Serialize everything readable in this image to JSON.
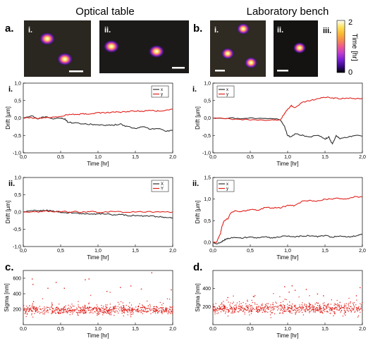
{
  "columns": [
    {
      "title": "Optical table",
      "panel": "a.",
      "images": [
        "i.",
        "ii."
      ]
    },
    {
      "title": "Laboratory bench",
      "panel": "b.",
      "images": [
        "i.",
        "ii.",
        "iii."
      ]
    }
  ],
  "colorbar": {
    "label": "Time [hr]",
    "max": "2",
    "min": "0",
    "colors": [
      "#000000",
      "#3c0a8c",
      "#7a1fd6",
      "#c33cd0",
      "#ee5a8c",
      "#f88c4a",
      "#fbb935",
      "#fde35e",
      "#ffffff"
    ]
  },
  "colors": {
    "x_line": "#303030",
    "y_line": "#e0201a",
    "sigma": "#e0201a"
  },
  "chart_data": [
    {
      "id": "a-i",
      "type": "line",
      "panel_label": "i.",
      "xlabel": "Time [hr]",
      "ylabel": "Drift [µm]",
      "xlim": [
        0,
        2
      ],
      "ylim": [
        -1.0,
        1.0
      ],
      "xticks": [
        "0,0",
        "0,5",
        "1,0",
        "1,5",
        "2,0"
      ],
      "yticks": [
        "-1,0",
        "-0,5",
        "0,0",
        "0,5",
        "1,0"
      ],
      "legend": [
        "x",
        "y"
      ],
      "legend_placement": "top-right",
      "series": [
        {
          "name": "x",
          "points": [
            [
              0,
              0
            ],
            [
              0.1,
              0.07
            ],
            [
              0.2,
              -0.03
            ],
            [
              0.3,
              0.05
            ],
            [
              0.4,
              -0.03
            ],
            [
              0.5,
              0.0
            ],
            [
              0.55,
              -0.02
            ],
            [
              0.6,
              -0.12
            ],
            [
              0.7,
              -0.15
            ],
            [
              0.8,
              -0.17
            ],
            [
              0.9,
              -0.18
            ],
            [
              1.0,
              -0.2
            ],
            [
              1.1,
              -0.22
            ],
            [
              1.2,
              -0.2
            ],
            [
              1.3,
              -0.18
            ],
            [
              1.4,
              -0.25
            ],
            [
              1.5,
              -0.3
            ],
            [
              1.6,
              -0.25
            ],
            [
              1.7,
              -0.32
            ],
            [
              1.8,
              -0.3
            ],
            [
              1.9,
              -0.37
            ],
            [
              2.0,
              -0.35
            ]
          ]
        },
        {
          "name": "y",
          "points": [
            [
              0,
              0
            ],
            [
              0.1,
              0.0
            ],
            [
              0.2,
              -0.02
            ],
            [
              0.3,
              0.02
            ],
            [
              0.4,
              0.02
            ],
            [
              0.5,
              0.05
            ],
            [
              0.6,
              0.1
            ],
            [
              0.7,
              0.1
            ],
            [
              0.8,
              0.12
            ],
            [
              0.9,
              0.12
            ],
            [
              1.0,
              0.15
            ],
            [
              1.1,
              0.15
            ],
            [
              1.2,
              0.17
            ],
            [
              1.3,
              0.17
            ],
            [
              1.4,
              0.18
            ],
            [
              1.5,
              0.2
            ],
            [
              1.6,
              0.2
            ],
            [
              1.7,
              0.22
            ],
            [
              1.8,
              0.2
            ],
            [
              1.9,
              0.22
            ],
            [
              2.0,
              0.25
            ]
          ]
        }
      ]
    },
    {
      "id": "a-ii",
      "type": "line",
      "panel_label": "ii.",
      "xlabel": "Time [hr]",
      "ylabel": "Drift [µm]",
      "xlim": [
        0,
        2
      ],
      "ylim": [
        -1.0,
        1.0
      ],
      "xticks": [
        "0,0",
        "0,5",
        "1,0",
        "1,5",
        "2,0"
      ],
      "yticks": [
        "-1,0",
        "-0,5",
        "0,0",
        "0,5",
        "1,0"
      ],
      "legend": [
        "X",
        "Y"
      ],
      "legend_placement": "top-right",
      "series": [
        {
          "name": "X",
          "points": [
            [
              0,
              0
            ],
            [
              0.1,
              0.03
            ],
            [
              0.2,
              0.05
            ],
            [
              0.3,
              0.05
            ],
            [
              0.4,
              0.02
            ],
            [
              0.5,
              0.0
            ],
            [
              0.6,
              -0.02
            ],
            [
              0.7,
              -0.03
            ],
            [
              0.8,
              -0.05
            ],
            [
              0.9,
              -0.07
            ],
            [
              1.0,
              -0.05
            ],
            [
              1.1,
              -0.05
            ],
            [
              1.2,
              -0.08
            ],
            [
              1.3,
              -0.07
            ],
            [
              1.4,
              -0.1
            ],
            [
              1.5,
              -0.1
            ],
            [
              1.6,
              -0.12
            ],
            [
              1.7,
              -0.12
            ],
            [
              1.8,
              -0.13
            ],
            [
              1.9,
              -0.15
            ],
            [
              2.0,
              -0.17
            ]
          ]
        },
        {
          "name": "Y",
          "points": [
            [
              0,
              0
            ],
            [
              0.1,
              0.0
            ],
            [
              0.2,
              0.01
            ],
            [
              0.3,
              0.02
            ],
            [
              0.4,
              0.01
            ],
            [
              0.5,
              0.02
            ],
            [
              0.6,
              0.0
            ],
            [
              0.7,
              0.01
            ],
            [
              0.8,
              0.0
            ],
            [
              0.9,
              0.01
            ],
            [
              1.0,
              0.0
            ],
            [
              1.2,
              0.01
            ],
            [
              1.4,
              0.0
            ],
            [
              1.6,
              0.01
            ],
            [
              1.8,
              0.0
            ],
            [
              2.0,
              0.0
            ]
          ]
        }
      ]
    },
    {
      "id": "b-i",
      "type": "line",
      "panel_label": "i.",
      "xlabel": "Time [hr]",
      "ylabel": "Drift [µm]",
      "xlim": [
        0,
        2
      ],
      "ylim": [
        -1.0,
        1.0
      ],
      "xticks": [
        "0,0",
        "0,5",
        "1,0",
        "1,5",
        "2,0"
      ],
      "yticks": [
        "-1,0",
        "-0,5",
        "0,0",
        "0,5",
        "1,0"
      ],
      "legend": [
        "x",
        "y"
      ],
      "legend_placement": "top-left",
      "series": [
        {
          "name": "x",
          "points": [
            [
              0,
              0
            ],
            [
              0.2,
              0.0
            ],
            [
              0.4,
              -0.02
            ],
            [
              0.6,
              0.0
            ],
            [
              0.8,
              -0.02
            ],
            [
              0.9,
              -0.05
            ],
            [
              0.95,
              -0.2
            ],
            [
              1.0,
              -0.5
            ],
            [
              1.05,
              -0.55
            ],
            [
              1.1,
              -0.45
            ],
            [
              1.2,
              -0.5
            ],
            [
              1.3,
              -0.55
            ],
            [
              1.4,
              -0.5
            ],
            [
              1.5,
              -0.6
            ],
            [
              1.55,
              -0.55
            ],
            [
              1.6,
              -0.75
            ],
            [
              1.65,
              -0.5
            ],
            [
              1.7,
              -0.6
            ],
            [
              1.8,
              -0.55
            ],
            [
              1.9,
              -0.5
            ],
            [
              2.0,
              -0.52
            ]
          ]
        },
        {
          "name": "y",
          "points": [
            [
              0,
              0
            ],
            [
              0.2,
              -0.03
            ],
            [
              0.4,
              -0.05
            ],
            [
              0.6,
              -0.05
            ],
            [
              0.8,
              -0.06
            ],
            [
              0.9,
              -0.05
            ],
            [
              0.95,
              0.1
            ],
            [
              1.0,
              0.25
            ],
            [
              1.05,
              0.35
            ],
            [
              1.1,
              0.3
            ],
            [
              1.2,
              0.45
            ],
            [
              1.3,
              0.5
            ],
            [
              1.4,
              0.55
            ],
            [
              1.5,
              0.6
            ],
            [
              1.6,
              0.57
            ],
            [
              1.7,
              0.55
            ],
            [
              1.8,
              0.58
            ],
            [
              1.9,
              0.55
            ],
            [
              2.0,
              0.57
            ]
          ]
        }
      ]
    },
    {
      "id": "b-ii",
      "type": "line",
      "panel_label": "ii.",
      "xlabel": "Time [hr]",
      "ylabel": "Drift [µm]",
      "xlim": [
        0,
        2
      ],
      "ylim": [
        -0.1,
        1.5
      ],
      "xticks": [
        "0,0",
        "0,5",
        "1,0",
        "1,5",
        "2,0"
      ],
      "yticks": [
        "0,0",
        "0,5",
        "1,0",
        "1,5"
      ],
      "legend": [
        "x",
        "y"
      ],
      "legend_placement": "top-left",
      "series": [
        {
          "name": "x",
          "points": [
            [
              0,
              0
            ],
            [
              0.05,
              -0.05
            ],
            [
              0.1,
              0.0
            ],
            [
              0.15,
              0.05
            ],
            [
              0.2,
              0.08
            ],
            [
              0.3,
              0.12
            ],
            [
              0.4,
              0.1
            ],
            [
              0.5,
              0.12
            ],
            [
              0.6,
              0.1
            ],
            [
              0.7,
              0.12
            ],
            [
              0.8,
              0.1
            ],
            [
              0.9,
              0.13
            ],
            [
              1.0,
              0.15
            ],
            [
              1.1,
              0.12
            ],
            [
              1.2,
              0.15
            ],
            [
              1.3,
              0.15
            ],
            [
              1.4,
              0.13
            ],
            [
              1.5,
              0.15
            ],
            [
              1.6,
              0.12
            ],
            [
              1.7,
              0.15
            ],
            [
              1.8,
              0.12
            ],
            [
              1.9,
              0.15
            ],
            [
              2.0,
              0.18
            ]
          ]
        },
        {
          "name": "y",
          "points": [
            [
              0,
              0
            ],
            [
              0.05,
              0.0
            ],
            [
              0.1,
              0.2
            ],
            [
              0.12,
              0.35
            ],
            [
              0.15,
              0.5
            ],
            [
              0.2,
              0.55
            ],
            [
              0.25,
              0.7
            ],
            [
              0.3,
              0.72
            ],
            [
              0.4,
              0.72
            ],
            [
              0.5,
              0.75
            ],
            [
              0.6,
              0.75
            ],
            [
              0.7,
              0.8
            ],
            [
              0.8,
              0.8
            ],
            [
              0.9,
              0.8
            ],
            [
              1.0,
              0.85
            ],
            [
              1.1,
              0.85
            ],
            [
              1.2,
              0.95
            ],
            [
              1.3,
              0.97
            ],
            [
              1.4,
              0.95
            ],
            [
              1.5,
              1.0
            ],
            [
              1.6,
              1.0
            ],
            [
              1.7,
              1.02
            ],
            [
              1.8,
              1.0
            ],
            [
              1.9,
              1.05
            ],
            [
              2.0,
              1.05
            ]
          ]
        }
      ]
    },
    {
      "id": "c",
      "type": "scatter",
      "panel_label": "c.",
      "xlabel": "Time [hr]",
      "ylabel": "Sigma [nm]",
      "xlim": [
        0,
        2
      ],
      "ylim": [
        0,
        700
      ],
      "xticks": [
        "0,0",
        "0,5",
        "1,0",
        "1,5",
        "2,0"
      ],
      "yticks": [
        "200",
        "400",
        "600"
      ],
      "summary": {
        "n_points": 700,
        "median": 190,
        "spread": 30,
        "outliers_up_to": 670
      },
      "outliers": [
        [
          0.12,
          590
        ],
        [
          0.13,
          520
        ],
        [
          0.33,
          470
        ],
        [
          0.44,
          545
        ],
        [
          0.55,
          470
        ],
        [
          0.83,
          580
        ],
        [
          0.88,
          590
        ],
        [
          1.12,
          430
        ],
        [
          1.3,
          480
        ],
        [
          1.44,
          500
        ],
        [
          1.58,
          460
        ],
        [
          1.72,
          670
        ],
        [
          1.98,
          450
        ]
      ]
    },
    {
      "id": "d",
      "type": "scatter",
      "panel_label": "d.",
      "xlabel": "Time [hr]",
      "ylabel": "Sigma [nm]",
      "xlim": [
        0,
        2
      ],
      "ylim": [
        0,
        600
      ],
      "xticks": [
        "0,0",
        "0,5",
        "1,0",
        "1,5",
        "2,0"
      ],
      "yticks": [
        "200",
        "400"
      ],
      "summary": {
        "n_points": 700,
        "median": 180,
        "spread": 28,
        "outliers_up_to": 430
      },
      "outliers": [
        [
          0.2,
          300
        ],
        [
          0.55,
          310
        ],
        [
          0.96,
          420
        ],
        [
          1.02,
          360
        ],
        [
          1.06,
          430
        ],
        [
          1.1,
          380
        ],
        [
          1.25,
          390
        ],
        [
          1.4,
          340
        ],
        [
          1.48,
          320
        ],
        [
          1.92,
          320
        ],
        [
          1.97,
          410
        ]
      ]
    }
  ]
}
